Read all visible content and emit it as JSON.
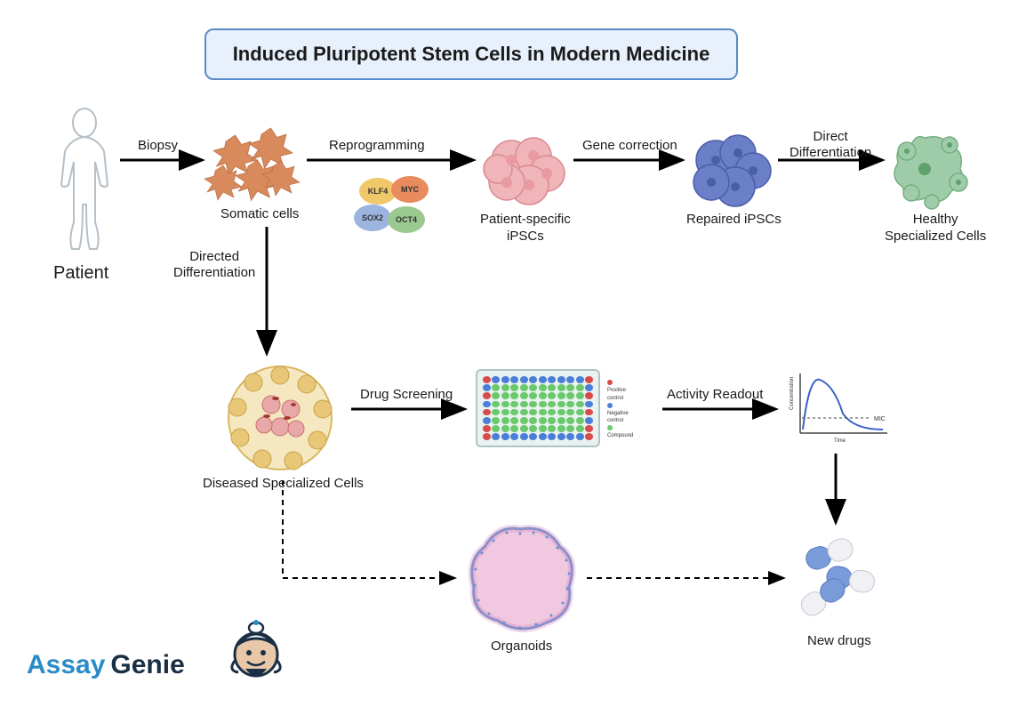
{
  "title": "Induced Pluripotent Stem Cells in Modern Medicine",
  "nodes": {
    "patient": {
      "label": "Patient"
    },
    "somatic": {
      "label": "Somatic cells"
    },
    "ipsc": {
      "label": "Patient-specific\niPSCs"
    },
    "repaired": {
      "label": "Repaired iPSCs"
    },
    "healthy": {
      "label": "Healthy\nSpecialized Cells"
    },
    "diseased": {
      "label": "Diseased Specialized Cells"
    },
    "organoids": {
      "label": "Organoids"
    },
    "newdrugs": {
      "label": "New drugs"
    }
  },
  "edges": {
    "biopsy": "Biopsy",
    "reprogramming": "Reprogramming",
    "genecorrection": "Gene correction",
    "directdiff": "Direct\nDifferentiation",
    "directeddiff": "Directed\nDifferentiation",
    "drugscreening": "Drug Screening",
    "activityreadout": "Activity Readout"
  },
  "factors": {
    "klf4": {
      "label": "KLF4",
      "color": "#f0c869"
    },
    "myc": {
      "label": "MYC",
      "color": "#e88b5d"
    },
    "sox2": {
      "label": "SOX2",
      "color": "#9bb4e0"
    },
    "oct4": {
      "label": "OCT4",
      "color": "#9bc98f"
    }
  },
  "wellplate": {
    "rows": 8,
    "cols": 12,
    "colors": {
      "positive": "#d94a4a",
      "negative": "#4a7fd9",
      "compound": "#6bc96b"
    },
    "legend": {
      "positive": "Positive control",
      "negative": "Negative control",
      "compound": "Compound"
    }
  },
  "chart": {
    "ylabel": "Concentration",
    "xlabel": "Time",
    "mic": "MIC",
    "line_color": "#3b5fc9",
    "axis_color": "#444444"
  },
  "colors": {
    "title_bg": "#e8f0fb",
    "title_border": "#5a8bc9",
    "somatic_cell": "#d98a5c",
    "ipsc_cell": "#f0b5b8",
    "repaired_cell": "#6b7fc9",
    "healthy_cell": "#8fc49a",
    "diseased_outer": "#e8c878",
    "diseased_inner": "#e8a8a8",
    "organoid_border": "#6a8fd0",
    "organoid_fill": "#f0c8e0",
    "pill_blue": "#7a9bd9",
    "pill_white": "#f0f0f5",
    "arrow": "#000000"
  },
  "logo": {
    "part1": "Assay",
    "part2": "Genie"
  }
}
